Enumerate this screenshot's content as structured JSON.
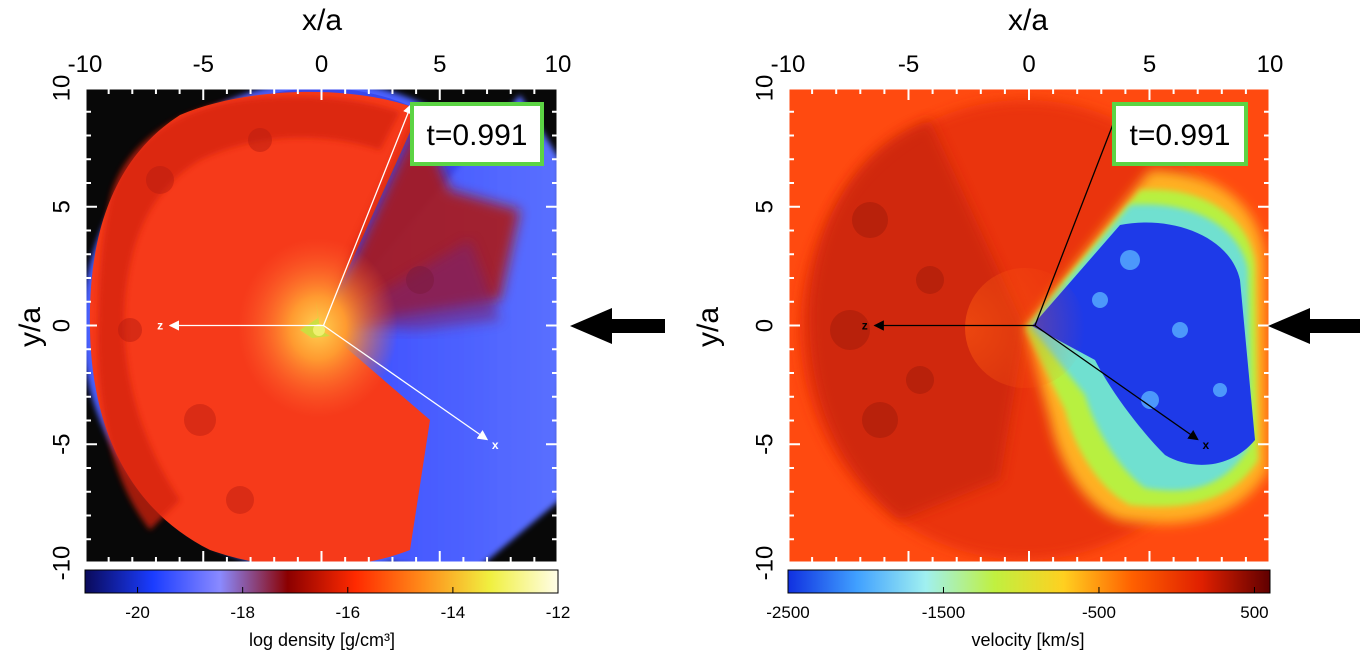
{
  "chart_data": [
    {
      "type": "heatmap",
      "panel": "left",
      "quantity": "log density",
      "xlabel": "x/a",
      "ylabel": "y/a",
      "xlim": [
        -10,
        10
      ],
      "ylim": [
        -10,
        10
      ],
      "xticks": [
        "-10",
        "-5",
        "0",
        "5",
        "10"
      ],
      "yticks": [
        "-10",
        "-5",
        "0",
        "5",
        "10"
      ],
      "time_label": "t=0.991",
      "vectors": [
        {
          "label": "z",
          "x": -6.4,
          "y": 0
        },
        {
          "label": "x",
          "x": 7.0,
          "y": -4.8
        },
        {
          "label": "",
          "x": 3.8,
          "y": 9.3
        }
      ],
      "colorbar": {
        "label": "log density [g/cm³]",
        "range": [
          -21,
          -12
        ],
        "ticks": [
          "-20",
          "-18",
          "-16",
          "-14",
          "-12"
        ],
        "tick_values": [
          -20,
          -18,
          -16,
          -14,
          -12
        ],
        "colors": [
          "#0a0a5a",
          "#1a3cff",
          "#8a8aff",
          "#8b0000",
          "#ff2a00",
          "#ff8c1a",
          "#f0f040",
          "#fffde8"
        ]
      }
    },
    {
      "type": "heatmap",
      "panel": "right",
      "quantity": "velocity",
      "xlabel": "x/a",
      "ylabel": "y/a",
      "xlim": [
        -10,
        10
      ],
      "ylim": [
        -10,
        10
      ],
      "xticks": [
        "-10",
        "-5",
        "0",
        "5",
        "10"
      ],
      "yticks": [
        "-10",
        "-5",
        "0",
        "5",
        "10"
      ],
      "time_label": "t=0.991",
      "vectors": [
        {
          "label": "z",
          "x": -6.4,
          "y": 0
        },
        {
          "label": "x",
          "x": 7.0,
          "y": -4.8
        },
        {
          "label": "",
          "x": 3.8,
          "y": 9.3
        }
      ],
      "colorbar": {
        "label": "velocity [km/s]",
        "range": [
          -2500,
          600
        ],
        "ticks": [
          "-2500",
          "-1500",
          "-500",
          "500"
        ],
        "tick_values": [
          -2500,
          -1500,
          -500,
          500
        ],
        "colors": [
          "#1030e0",
          "#40a0ff",
          "#a0f0f0",
          "#c0f040",
          "#ffd020",
          "#ff6000",
          "#e02000",
          "#600000"
        ]
      }
    }
  ]
}
